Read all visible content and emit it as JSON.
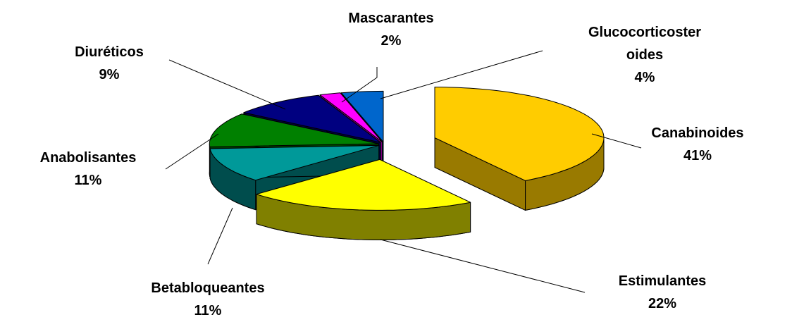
{
  "chart_data": {
    "type": "pie",
    "categories": [
      "Canabinoides",
      "Estimulantes",
      "Betabloqueantes",
      "Anabolisantes",
      "Diuréticos",
      "Mascarantes",
      "Glucocorticoster oides"
    ],
    "values": [
      41,
      22,
      11,
      11,
      9,
      2,
      4
    ],
    "value_labels": [
      "41%",
      "22%",
      "11%",
      "11%",
      "9%",
      "2%",
      "4%"
    ],
    "colors": [
      "#FFCC00",
      "#FFFF00",
      "#009999",
      "#008000",
      "#000080",
      "#FF00FF",
      "#0066CC"
    ],
    "side_colors": [
      "#997A00",
      "#808000",
      "#004D4D",
      "#004000",
      "#000040",
      "#800080",
      "#003366"
    ]
  }
}
